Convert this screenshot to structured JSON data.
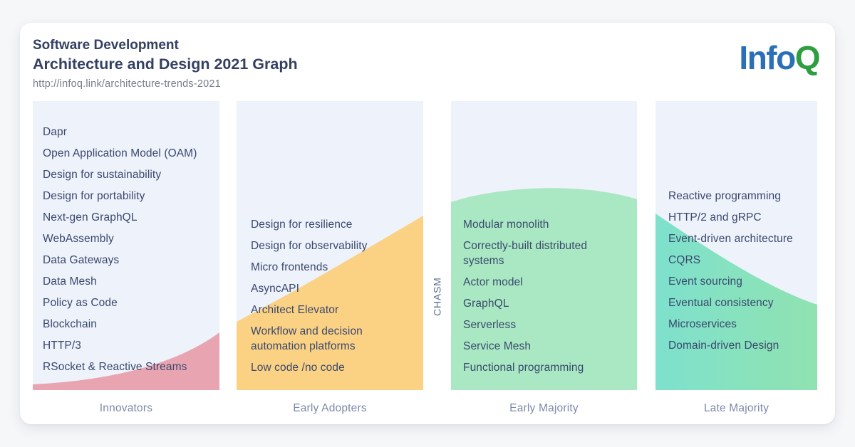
{
  "header": {
    "title_line1": "Software Development",
    "title_line2": "Architecture and Design 2021 Graph",
    "link": "http://infoq.link/architecture-trends-2021"
  },
  "logo": {
    "part_info": "Info",
    "part_q": "Q"
  },
  "chasm": {
    "label": "CHASM"
  },
  "colors": {
    "page_bg": "#f6f7f9",
    "card_bg": "#ffffff",
    "panel_bg": "#eef2fa",
    "text_navy": "#3a496e",
    "title_navy": "#344063",
    "label_muted": "#7c89a9",
    "url_gray": "#787e89",
    "chasm_gray": "#5c6b8f",
    "logo_blue": "#2b6fb8",
    "logo_green": "#2f9e41",
    "innovators_pink": "#e9a4b1",
    "early_adopters_orange": "#fbd184",
    "early_majority_green": "#a9e8c2",
    "late_majority_teal_start": "#7ee1cd",
    "late_majority_teal_end": "#90e2b0"
  },
  "columns": [
    {
      "label": "Innovators",
      "color": "#e9a4b1",
      "items": [
        "Dapr",
        "Open Application Model (OAM)",
        "Design for sustainability",
        "Design for portability",
        "Next-gen GraphQL",
        "WebAssembly",
        "Data Gateways",
        "Data Mesh",
        "Policy as Code",
        "Blockchain",
        "HTTP/3",
        "RSocket & Reactive Streams"
      ]
    },
    {
      "label": "Early Adopters",
      "color": "#fbd184",
      "items": [
        "Design for resilience",
        "Design for observability",
        "Micro frontends",
        "AsyncAPI",
        "Architect Elevator",
        "Workflow and decision automation platforms",
        "Low code /no code"
      ]
    },
    {
      "label": "Early Majority",
      "color": "#a9e8c2",
      "items": [
        "Modular monolith",
        "Correctly-built distributed systems",
        "Actor model",
        "GraphQL",
        "Serverless",
        "Service Mesh",
        "Functional programming"
      ]
    },
    {
      "label": "Late Majority",
      "gradient": [
        "#7ee1cd",
        "#90e2b0"
      ],
      "items": [
        "Reactive programming",
        "HTTP/2 and gRPC",
        "Event-driven architecture",
        "CQRS",
        "Event sourcing",
        "Eventual consistency",
        "Microservices",
        "Domain-driven Design"
      ]
    }
  ]
}
